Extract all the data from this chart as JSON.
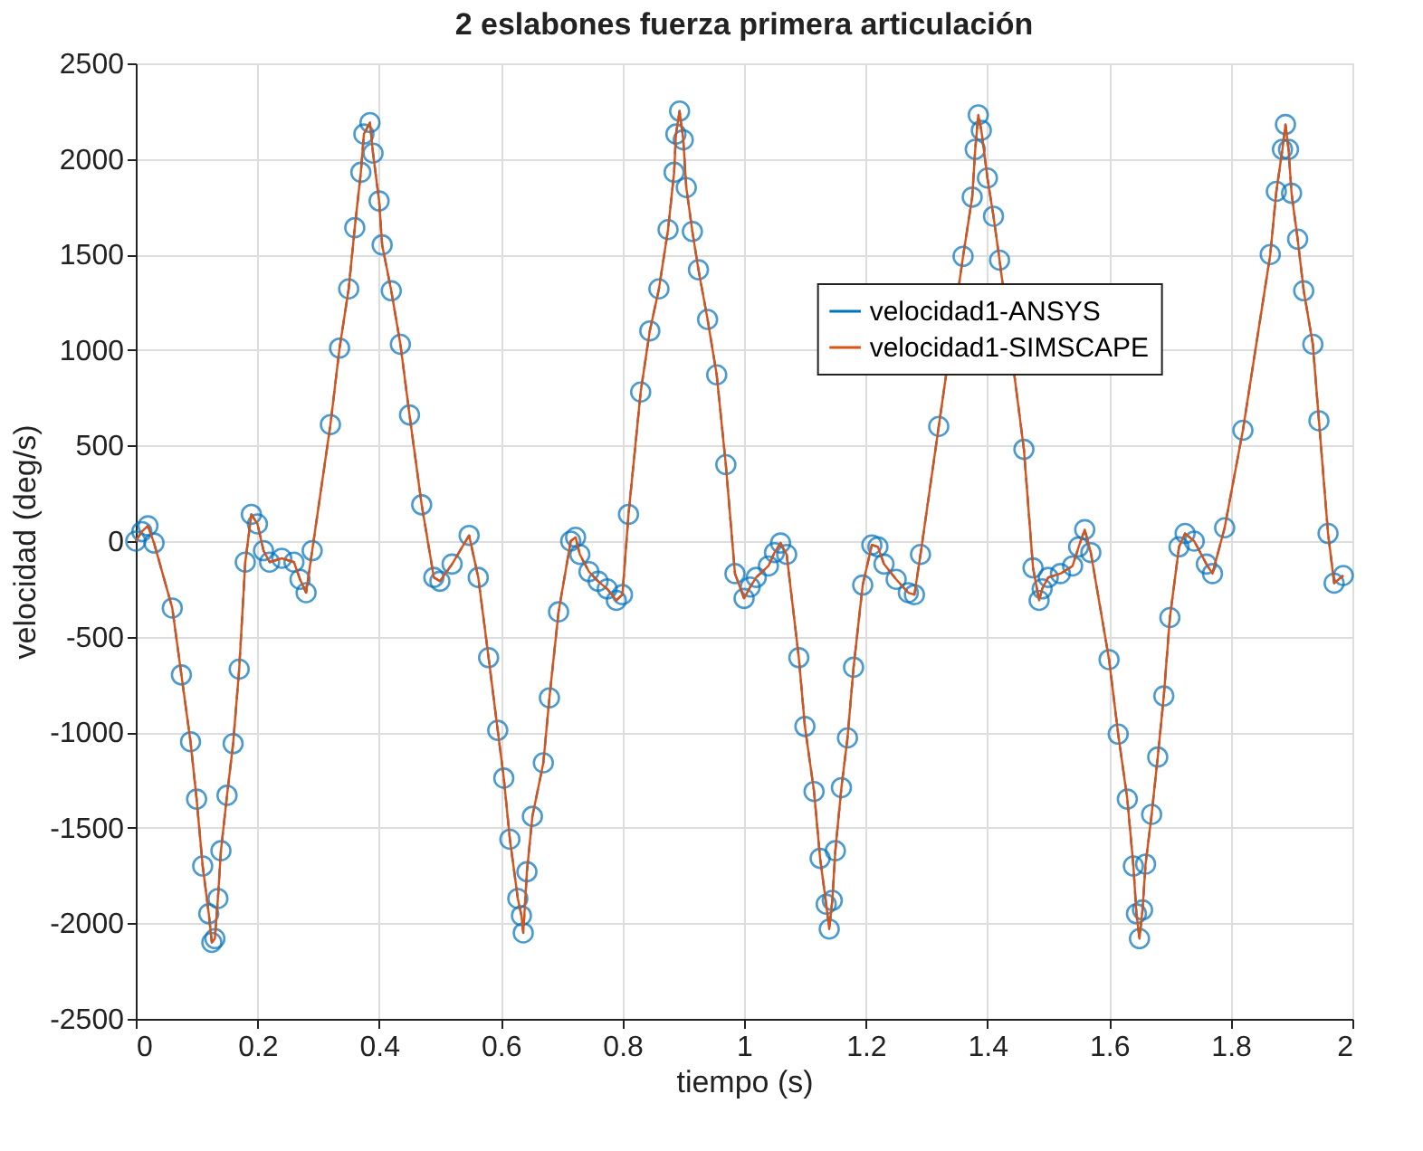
{
  "chart_data": {
    "type": "line",
    "title": "2 eslabones fuerza primera articulación",
    "xlabel": "tiempo (s)",
    "ylabel": "velocidad (deg/s)",
    "xlim": [
      0,
      2
    ],
    "xticks": [
      0,
      0.2,
      0.4,
      0.6,
      0.8,
      1,
      1.2,
      1.4,
      1.6,
      1.8,
      2
    ],
    "ylim": [
      -2500,
      2500
    ],
    "yticks": [
      -2500,
      -2000,
      -1500,
      -1000,
      -500,
      0,
      500,
      1000,
      1500,
      2000,
      2500
    ],
    "grid": true,
    "legend": "right",
    "x": [
      0,
      0.01,
      0.02,
      0.03,
      0.06,
      0.075,
      0.09,
      0.1,
      0.11,
      0.12,
      0.125,
      0.13,
      0.135,
      0.14,
      0.15,
      0.16,
      0.17,
      0.18,
      0.19,
      0.2,
      0.21,
      0.22,
      0.24,
      0.26,
      0.27,
      0.28,
      0.29,
      0.32,
      0.335,
      0.35,
      0.36,
      0.37,
      0.375,
      0.385,
      0.39,
      0.4,
      0.405,
      0.42,
      0.435,
      0.45,
      0.47,
      0.49,
      0.5,
      0.52,
      0.548,
      0.563,
      0.58,
      0.595,
      0.605,
      0.615,
      0.628,
      0.634,
      0.637,
      0.643,
      0.652,
      0.67,
      0.68,
      0.695,
      0.715,
      0.723,
      0.73,
      0.745,
      0.76,
      0.775,
      0.79,
      0.8,
      0.81,
      0.83,
      0.845,
      0.86,
      0.875,
      0.885,
      0.888,
      0.894,
      0.9,
      0.905,
      0.915,
      0.925,
      0.94,
      0.955,
      0.97,
      0.985,
      1.0,
      1.01,
      1.02,
      1.04,
      1.05,
      1.06,
      1.07,
      1.09,
      1.1,
      1.115,
      1.125,
      1.135,
      1.14,
      1.145,
      1.15,
      1.16,
      1.17,
      1.18,
      1.195,
      1.21,
      1.22,
      1.23,
      1.25,
      1.27,
      1.28,
      1.29,
      1.32,
      1.36,
      1.375,
      1.38,
      1.385,
      1.39,
      1.4,
      1.41,
      1.42,
      1.46,
      1.475,
      1.485,
      1.49,
      1.5,
      1.52,
      1.54,
      1.55,
      1.56,
      1.57,
      1.6,
      1.615,
      1.63,
      1.64,
      1.645,
      1.65,
      1.655,
      1.66,
      1.67,
      1.68,
      1.69,
      1.7,
      1.715,
      1.725,
      1.74,
      1.76,
      1.77,
      1.79,
      1.82,
      1.865,
      1.875,
      1.885,
      1.89,
      1.895,
      1.9,
      1.91,
      1.92,
      1.935,
      1.945,
      1.96,
      1.97,
      1.985
    ],
    "series": [
      {
        "name": "velocidad1-ANSYS",
        "color": "#0072bd",
        "line_style": "dashed",
        "marker": "circle",
        "values": [
          0,
          50,
          80,
          -10,
          -350,
          -700,
          -1050,
          -1350,
          -1700,
          -1950,
          -2100,
          -2080,
          -1870,
          -1620,
          -1330,
          -1060,
          -670,
          -110,
          140,
          90,
          -50,
          -110,
          -90,
          -110,
          -200,
          -270,
          -50,
          610,
          1010,
          1320,
          1640,
          1930,
          2130,
          2190,
          2030,
          1780,
          1550,
          1310,
          1030,
          660,
          190,
          -190,
          -210,
          -120,
          30,
          -190,
          -610,
          -990,
          -1240,
          -1560,
          -1870,
          -1960,
          -2050,
          -1730,
          -1440,
          -1160,
          -820,
          -370,
          0,
          20,
          -70,
          -160,
          -210,
          -250,
          -310,
          -280,
          140,
          780,
          1100,
          1320,
          1630,
          1930,
          2130,
          2250,
          2100,
          1850,
          1620,
          1420,
          1160,
          870,
          400,
          -170,
          -300,
          -240,
          -190,
          -130,
          -60,
          -10,
          -70,
          -610,
          -970,
          -1310,
          -1660,
          -1900,
          -2030,
          -1880,
          -1620,
          -1290,
          -1030,
          -660,
          -230,
          -20,
          -30,
          -120,
          -200,
          -270,
          -280,
          -70,
          600,
          1490,
          1800,
          2050,
          2230,
          2150,
          1900,
          1700,
          1470,
          480,
          -140,
          -310,
          -250,
          -190,
          -170,
          -130,
          -30,
          60,
          -60,
          -620,
          -1010,
          -1350,
          -1700,
          -1950,
          -2080,
          -1930,
          -1690,
          -1430,
          -1130,
          -810,
          -400,
          -30,
          40,
          0,
          -120,
          -170,
          70,
          580,
          1500,
          1830,
          2050,
          2180,
          2050,
          1820,
          1580,
          1310,
          1030,
          630,
          40,
          -220,
          -180
        ]
      },
      {
        "name": "velocidad1-SIMSCAPE",
        "color": "#d95319",
        "line_style": "solid",
        "marker": "none",
        "values": [
          0,
          50,
          80,
          -10,
          -350,
          -700,
          -1050,
          -1350,
          -1700,
          -1950,
          -2100,
          -2080,
          -1870,
          -1620,
          -1330,
          -1060,
          -670,
          -110,
          140,
          90,
          -50,
          -110,
          -90,
          -110,
          -200,
          -270,
          -50,
          610,
          1010,
          1320,
          1640,
          1930,
          2130,
          2190,
          2030,
          1780,
          1550,
          1310,
          1030,
          660,
          190,
          -190,
          -210,
          -120,
          30,
          -190,
          -610,
          -990,
          -1240,
          -1560,
          -1870,
          -1960,
          -2050,
          -1730,
          -1440,
          -1160,
          -820,
          -370,
          0,
          20,
          -70,
          -160,
          -210,
          -250,
          -310,
          -280,
          140,
          780,
          1100,
          1320,
          1630,
          1930,
          2130,
          2250,
          2100,
          1850,
          1620,
          1420,
          1160,
          870,
          400,
          -170,
          -300,
          -240,
          -190,
          -130,
          -60,
          -10,
          -70,
          -610,
          -970,
          -1310,
          -1660,
          -1900,
          -2030,
          -1880,
          -1620,
          -1290,
          -1030,
          -660,
          -230,
          -20,
          -30,
          -120,
          -200,
          -270,
          -280,
          -70,
          600,
          1490,
          1800,
          2050,
          2230,
          2150,
          1900,
          1700,
          1470,
          480,
          -140,
          -310,
          -250,
          -190,
          -170,
          -130,
          -30,
          60,
          -60,
          -620,
          -1010,
          -1350,
          -1700,
          -1950,
          -2080,
          -1930,
          -1690,
          -1430,
          -1130,
          -810,
          -400,
          -30,
          40,
          0,
          -120,
          -170,
          70,
          580,
          1500,
          1830,
          2050,
          2180,
          2050,
          1820,
          1580,
          1310,
          1030,
          630,
          40,
          -220,
          -180
        ]
      }
    ]
  }
}
